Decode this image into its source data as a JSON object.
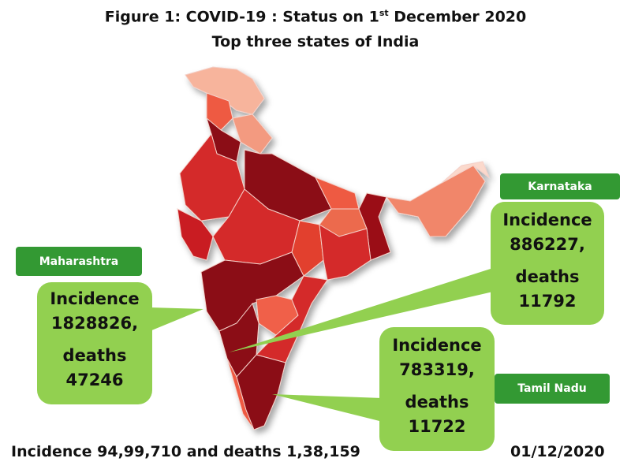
{
  "title": {
    "line1_prefix": "Figure 1: COVID-19 : Status on 1",
    "line1_sup": "st",
    "line1_suffix": " December 2020",
    "line2": "Top three states of India"
  },
  "states": [
    {
      "name": "Maharashtra",
      "incidence_label": "Incidence",
      "incidence": "1828826,",
      "deaths_label": "deaths",
      "deaths": "47246"
    },
    {
      "name": "Karnataka",
      "incidence_label": "Incidence",
      "incidence": "886227,",
      "deaths_label": "deaths",
      "deaths": "11792"
    },
    {
      "name": "Tamil Nadu",
      "incidence_label": "Incidence",
      "incidence": "783319,",
      "deaths_label": "deaths",
      "deaths": "11722"
    }
  ],
  "footer": {
    "summary": "Incidence 94,99,710 and  deaths 1,38,159",
    "date": "01/12/2020"
  },
  "colors": {
    "label_green": "#339933",
    "bubble_green": "#92d050",
    "dark_red": "#8b0a14",
    "red": "#d42a2a",
    "light": "#f6b9a3"
  }
}
